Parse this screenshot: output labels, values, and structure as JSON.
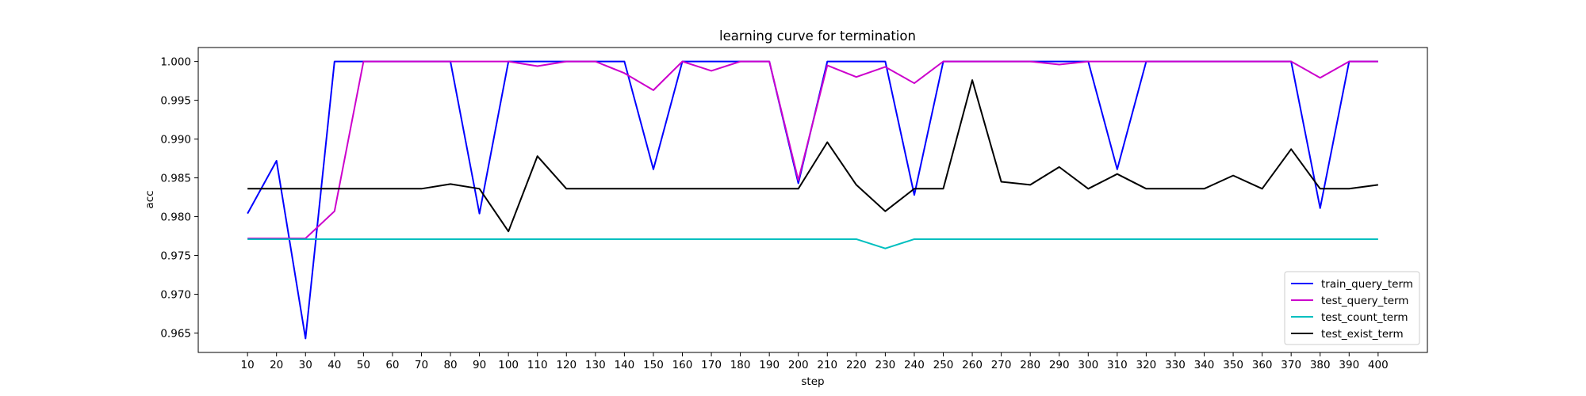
{
  "chart_data": {
    "type": "line",
    "title": "learning curve for termination",
    "xlabel": "step",
    "ylabel": "acc",
    "x": [
      10,
      20,
      30,
      40,
      50,
      60,
      70,
      80,
      90,
      100,
      110,
      120,
      130,
      140,
      150,
      160,
      170,
      180,
      190,
      200,
      210,
      220,
      230,
      240,
      250,
      260,
      270,
      280,
      290,
      300,
      310,
      320,
      330,
      340,
      350,
      360,
      370,
      380,
      390,
      400
    ],
    "xlim": [
      -7,
      417
    ],
    "ylim": [
      0.9625,
      1.0018
    ],
    "yticks": [
      0.965,
      0.97,
      0.975,
      0.98,
      0.985,
      0.99,
      0.995,
      1.0
    ],
    "ytick_labels": [
      "0.965",
      "0.970",
      "0.975",
      "0.980",
      "0.985",
      "0.990",
      "0.995",
      "1.000"
    ],
    "grid": false,
    "legend_position": "lower-right",
    "series": [
      {
        "name": "train_query_term",
        "color": "#0000ff",
        "values": [
          0.9804,
          0.9872,
          0.9643,
          1.0,
          1.0,
          1.0,
          1.0,
          1.0,
          0.9804,
          1.0,
          1.0,
          1.0,
          1.0,
          1.0,
          0.9861,
          1.0,
          1.0,
          1.0,
          1.0,
          0.9843,
          1.0,
          1.0,
          1.0,
          0.9828,
          1.0,
          1.0,
          1.0,
          1.0,
          1.0,
          1.0,
          0.9861,
          1.0,
          1.0,
          1.0,
          1.0,
          1.0,
          1.0,
          0.9811,
          1.0,
          1.0
        ]
      },
      {
        "name": "test_query_term",
        "color": "#cc00cc",
        "values": [
          0.9772,
          0.9772,
          0.9772,
          0.9807,
          1.0,
          1.0,
          1.0,
          1.0,
          1.0,
          1.0,
          0.9994,
          1.0,
          1.0,
          0.9985,
          0.9963,
          1.0,
          0.9988,
          1.0,
          1.0,
          0.9847,
          0.9995,
          0.998,
          0.9993,
          0.9972,
          1.0,
          1.0,
          1.0,
          1.0,
          0.9996,
          1.0,
          1.0,
          1.0,
          1.0,
          1.0,
          1.0,
          1.0,
          1.0,
          0.9979,
          1.0,
          1.0
        ]
      },
      {
        "name": "test_count_term",
        "color": "#00bfbf",
        "values": [
          0.9771,
          0.9771,
          0.9771,
          0.9771,
          0.9771,
          0.9771,
          0.9771,
          0.9771,
          0.9771,
          0.9771,
          0.9771,
          0.9771,
          0.9771,
          0.9771,
          0.9771,
          0.9771,
          0.9771,
          0.9771,
          0.9771,
          0.9771,
          0.9771,
          0.9771,
          0.9759,
          0.9771,
          0.9771,
          0.9771,
          0.9771,
          0.9771,
          0.9771,
          0.9771,
          0.9771,
          0.9771,
          0.9771,
          0.9771,
          0.9771,
          0.9771,
          0.9771,
          0.9771,
          0.9771,
          0.9771
        ]
      },
      {
        "name": "test_exist_term",
        "color": "#000000",
        "values": [
          0.9836,
          0.9836,
          0.9836,
          0.9836,
          0.9836,
          0.9836,
          0.9836,
          0.9842,
          0.9836,
          0.9781,
          0.9878,
          0.9836,
          0.9836,
          0.9836,
          0.9836,
          0.9836,
          0.9836,
          0.9836,
          0.9836,
          0.9836,
          0.9896,
          0.9841,
          0.9807,
          0.9836,
          0.9836,
          0.9976,
          0.9845,
          0.9841,
          0.9864,
          0.9836,
          0.9855,
          0.9836,
          0.9836,
          0.9836,
          0.9853,
          0.9836,
          0.9887,
          0.9836,
          0.9836,
          0.9841
        ]
      }
    ]
  }
}
